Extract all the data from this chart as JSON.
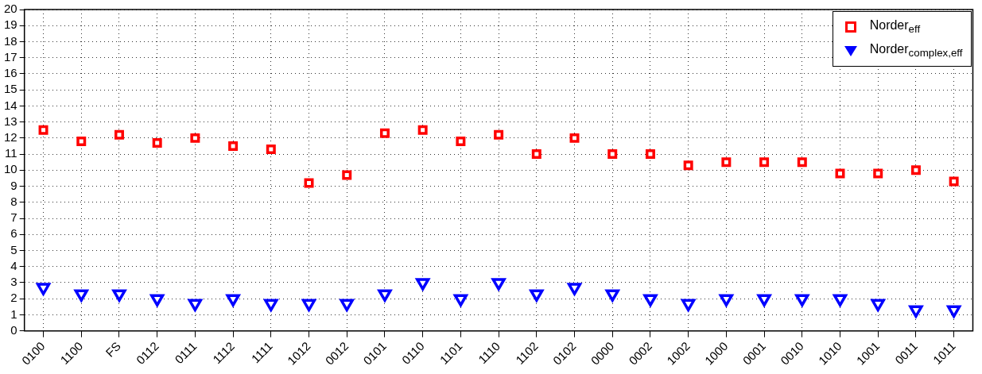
{
  "chart_data": {
    "type": "scatter",
    "categories": [
      "0100",
      "1100",
      "FS",
      "0112",
      "0111",
      "1112",
      "1111",
      "1012",
      "0012",
      "0101",
      "0110",
      "1101",
      "1110",
      "1102",
      "0102",
      "0000",
      "0002",
      "1002",
      "1000",
      "0001",
      "0010",
      "1010",
      "1001",
      "0011",
      "1011"
    ],
    "series": [
      {
        "name": "Norder$_{eff}$",
        "color": "#ff0000",
        "marker": "square",
        "values": [
          12.5,
          11.8,
          12.2,
          11.7,
          12,
          11.5,
          11.3,
          9.2,
          9.7,
          12.3,
          12.5,
          11.8,
          12.2,
          11,
          12,
          11,
          11,
          10.3,
          10.5,
          10.5,
          10.5,
          9.8,
          9.8,
          10,
          9.3
        ]
      },
      {
        "name": "Norder$_{complex,eff}$",
        "color": "#0000ff",
        "marker": "triangle",
        "values": [
          2.7,
          2.3,
          2.3,
          2,
          1.7,
          2,
          1.7,
          1.7,
          1.7,
          2.3,
          3,
          2,
          3,
          2.3,
          2.7,
          2.3,
          2,
          1.7,
          2,
          2,
          2,
          2,
          1.7,
          1.3,
          1.3
        ]
      }
    ],
    "ylim": [
      0,
      20
    ],
    "yticks": [
      0,
      1,
      2,
      3,
      4,
      5,
      6,
      7,
      8,
      9,
      10,
      11,
      12,
      13,
      14,
      15,
      16,
      17,
      18,
      19,
      20
    ],
    "grid": true,
    "legend": "top right"
  }
}
